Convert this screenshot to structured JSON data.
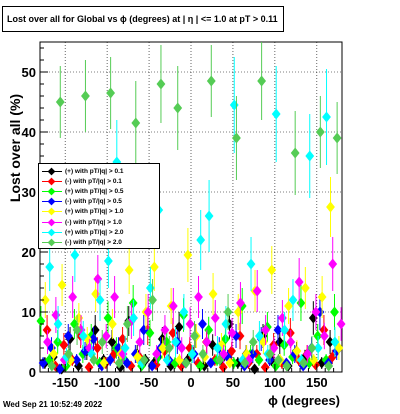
{
  "title": "Lost over all for Global vs ϕ (degrees) at |  η | <= 1.0 at pT > 0.11",
  "timestamp": "Wed Sep 21 10:52:49 2022",
  "chart_data": {
    "type": "scatter",
    "xlabel": "ϕ (degrees)",
    "ylabel": "Lost over all (%)",
    "xlim": [
      -180,
      180
    ],
    "ylim": [
      0,
      55
    ],
    "xticks": [
      -150,
      -100,
      -50,
      0,
      50,
      100,
      150
    ],
    "yticks": [
      0,
      10,
      20,
      30,
      40,
      50
    ],
    "grid": true,
    "legend_position": "left-middle",
    "marker": "diamond",
    "series": [
      {
        "name": "(+) with pT/|q| > 0.1",
        "color": "#000000",
        "x": [
          -175,
          -165,
          -155,
          -145,
          -135,
          -125,
          -115,
          -105,
          -95,
          -85,
          -75,
          -65,
          -55,
          -45,
          -35,
          -25,
          -15,
          -5,
          5,
          15,
          25,
          35,
          45,
          55,
          65,
          75,
          85,
          95,
          105,
          115,
          125,
          135,
          145,
          155,
          165,
          175
        ],
        "y": [
          6.5,
          1.5,
          2.5,
          0.5,
          5.5,
          1,
          3.5,
          7,
          2,
          5,
          0.8,
          8.5,
          3,
          2,
          1.5,
          5.5,
          1,
          7.5,
          2,
          6,
          1,
          4.5,
          2,
          8,
          1.5,
          3,
          0.5,
          6,
          2,
          5,
          1,
          3.5,
          2.5,
          9,
          1.5,
          5
        ],
        "err": [
          2,
          1,
          1.5,
          0.5,
          2,
          1,
          1.5,
          2.5,
          1,
          2,
          0.8,
          2.5,
          1.5,
          1,
          1,
          2,
          0.8,
          2.5,
          1,
          2,
          0.8,
          1.8,
          1,
          2.5,
          1,
          1.5,
          0.5,
          2,
          1,
          2,
          0.8,
          1.5,
          1.2,
          2.8,
          1,
          2
        ]
      },
      {
        "name": "(-) with pT/|q| > 0.1",
        "color": "#ff0000",
        "x": [
          -175,
          -165,
          -155,
          -145,
          -135,
          -125,
          -115,
          -105,
          -95,
          -85,
          -75,
          -65,
          -55,
          -45,
          -35,
          -25,
          -15,
          -5,
          5,
          15,
          25,
          35,
          45,
          55,
          65,
          75,
          85,
          95,
          105,
          115,
          125,
          135,
          145,
          155,
          165,
          175
        ],
        "y": [
          3,
          7,
          1,
          4.5,
          2,
          6,
          0.8,
          4,
          1.5,
          3,
          5.5,
          1,
          2.5,
          7,
          1.2,
          3.5,
          6.5,
          1,
          4,
          1.5,
          5,
          2,
          0.8,
          3.5,
          6,
          1.5,
          3,
          0.8,
          4.5,
          1.5,
          6.5,
          2,
          3,
          1.2,
          7,
          2.5
        ],
        "err": [
          1.5,
          2.5,
          0.8,
          2,
          1,
          2,
          0.6,
          1.8,
          1,
          1.5,
          2,
          0.8,
          1.2,
          2.5,
          0.8,
          1.5,
          2.5,
          0.8,
          1.8,
          1,
          2,
          1,
          0.6,
          1.5,
          2.2,
          1,
          1.5,
          0.6,
          2,
          1,
          2.5,
          1,
          1.5,
          0.8,
          2.5,
          1.2
        ]
      },
      {
        "name": "(+) with pT/|q| > 0.5",
        "color": "#00ff00",
        "x": [
          -175,
          -165,
          -155,
          -145,
          -135,
          -125,
          -115,
          -105,
          -95,
          -85,
          -75,
          -65,
          -55,
          -45,
          -35,
          -25,
          -15,
          -5,
          5,
          15,
          25,
          35,
          45,
          55,
          65,
          75,
          85,
          95,
          105,
          115,
          125,
          135,
          145,
          155,
          165,
          175
        ],
        "y": [
          8.5,
          2,
          5,
          1,
          8,
          3,
          6,
          1.5,
          9,
          4,
          2,
          11.5,
          1,
          6.5,
          2.5,
          5,
          1.5,
          9.5,
          3,
          1,
          7,
          2,
          5.5,
          1.5,
          11,
          3,
          2,
          7.5,
          1,
          4.5,
          2.5,
          11.5,
          1.5,
          6,
          2,
          10
        ],
        "err": [
          2.5,
          1,
          2,
          0.8,
          2.5,
          1.5,
          2,
          1,
          2.8,
          1.8,
          1,
          3,
          0.8,
          2.2,
          1.2,
          2,
          1,
          2.8,
          1.5,
          0.8,
          2.2,
          1,
          2,
          1,
          3,
          1.5,
          1,
          2.5,
          0.8,
          1.8,
          1.2,
          3,
          1,
          2,
          1,
          3
        ]
      },
      {
        "name": "(-) with pT/|q| > 0.5",
        "color": "#0000ff",
        "x": [
          -175,
          -165,
          -155,
          -145,
          -135,
          -125,
          -115,
          -105,
          -95,
          -85,
          -75,
          -65,
          -55,
          -45,
          -35,
          -25,
          -15,
          -5,
          5,
          15,
          25,
          35,
          45,
          55,
          65,
          75,
          85,
          95,
          105,
          115,
          125,
          135,
          145,
          155,
          165,
          175
        ],
        "y": [
          1.5,
          4,
          0.5,
          6,
          2,
          3.5,
          5.5,
          1,
          2,
          4,
          1.5,
          3,
          7,
          1,
          4,
          2,
          5,
          1.5,
          3,
          8,
          1.5,
          4,
          2.5,
          6,
          1,
          3,
          5.5,
          2,
          7,
          1.5,
          3,
          1,
          4,
          10,
          1.5,
          3.5
        ],
        "err": [
          1,
          1.8,
          0.5,
          2,
          1,
          1.5,
          2,
          0.8,
          1,
          1.8,
          0.8,
          1.5,
          2.5,
          0.6,
          1.8,
          1,
          2,
          0.8,
          1.5,
          2.5,
          0.8,
          1.8,
          1.2,
          2,
          0.6,
          1.5,
          2,
          1,
          2.5,
          0.8,
          1.5,
          0.6,
          1.8,
          3,
          0.8,
          1.5
        ]
      },
      {
        "name": "(+) with pT/|q| > 1.0",
        "color": "#ffff00",
        "x": [
          -175,
          -165,
          -155,
          -145,
          -135,
          -125,
          -115,
          -105,
          -95,
          -85,
          -75,
          -65,
          -55,
          -45,
          -35,
          -25,
          -15,
          -5,
          5,
          15,
          25,
          35,
          45,
          55,
          65,
          75,
          85,
          95,
          105,
          115,
          125,
          135,
          145,
          155,
          165,
          175
        ],
        "y": [
          12,
          3,
          14.5,
          2,
          9,
          5.5,
          13,
          1.5,
          8,
          3,
          17,
          2.5,
          10,
          17.5,
          4,
          11,
          2,
          19.5,
          6,
          2.5,
          13,
          4.5,
          1.5,
          10,
          3,
          13.5,
          5,
          17,
          2,
          11,
          3.5,
          14,
          2,
          12.5,
          27.5,
          4
        ],
        "err": [
          3,
          1.5,
          3.5,
          1,
          2.5,
          2,
          3,
          1,
          2.5,
          1.5,
          4,
          1.2,
          3,
          4,
          1.8,
          3,
          1,
          4.5,
          2,
          1.2,
          3.5,
          2,
          0.8,
          3,
          1.5,
          3.5,
          2,
          4,
          1,
          3,
          1.8,
          3.5,
          1,
          3.5,
          5,
          2
        ]
      },
      {
        "name": "(-) with pT/|q| > 1.0",
        "color": "#ff00ff",
        "x": [
          -175,
          -165,
          -155,
          -145,
          -135,
          -125,
          -115,
          -105,
          -95,
          -85,
          -75,
          -65,
          -55,
          -45,
          -35,
          -25,
          -15,
          -5,
          5,
          15,
          25,
          35,
          45,
          55,
          65,
          75,
          85,
          95,
          105,
          115,
          125,
          135,
          145,
          155,
          165,
          175
        ],
        "y": [
          5,
          9.5,
          2,
          12.5,
          7,
          4,
          15.5,
          6,
          12.5,
          3,
          8.5,
          5,
          10,
          3,
          7,
          11,
          4,
          8,
          12.5,
          5,
          9,
          3,
          6.5,
          11.5,
          2,
          13.5,
          7,
          4,
          9,
          5,
          15,
          3,
          10,
          6,
          18,
          8
        ],
        "err": [
          2,
          3,
          1,
          3.5,
          2.5,
          1.5,
          4,
          2,
          3.5,
          1.5,
          3,
          2,
          3,
          1.5,
          2.5,
          3,
          1.8,
          2.8,
          3.5,
          2,
          3,
          1.5,
          2.5,
          3.5,
          1,
          3.5,
          2.5,
          1.8,
          3,
          2,
          4,
          1.5,
          3,
          2.2,
          4.5,
          2.8
        ]
      },
      {
        "name": "(+) with pT/|q| > 2.0",
        "color": "#00ffff",
        "x": [
          -175,
          -165,
          -155,
          -145,
          -135,
          -125,
          -115,
          -105,
          -95,
          -85,
          -75,
          -65,
          -55,
          -45,
          -35,
          -25,
          -15,
          -5,
          5,
          15,
          25,
          35,
          45,
          55,
          65,
          75,
          85,
          95,
          105,
          115,
          125,
          135,
          145,
          155,
          165,
          175
        ],
        "y": [
          17.5,
          8,
          2.5,
          19.5,
          6,
          3,
          12,
          18.5,
          35,
          4,
          9,
          1.5,
          14,
          27,
          2,
          5,
          10,
          3,
          22,
          26,
          4,
          8,
          44.5,
          2,
          18,
          6,
          3,
          43,
          7,
          12,
          2,
          36,
          4,
          42.5,
          5,
          8
        ],
        "err": [
          4,
          3,
          1.5,
          4.5,
          2.5,
          1.5,
          3.5,
          4.5,
          7,
          2,
          3,
          1,
          3.5,
          6,
          1,
          2.5,
          3,
          1.5,
          5,
          6,
          2,
          3,
          8,
          1,
          4.5,
          2.5,
          1.5,
          8,
          3,
          3.5,
          1,
          7,
          2,
          8,
          2.5,
          3
        ]
      },
      {
        "name": "(-) with pT/|q| > 2.0",
        "color": "#55cc55",
        "x": [
          -175,
          -165,
          -155,
          -145,
          -135,
          -125,
          -115,
          -105,
          -95,
          -85,
          -75,
          -65,
          -55,
          -45,
          -35,
          -25,
          -15,
          -5,
          5,
          15,
          25,
          35,
          45,
          55,
          65,
          75,
          85,
          95,
          105,
          115,
          125,
          135,
          145,
          155,
          165,
          175
        ],
        "y": [
          1,
          45,
          3,
          7,
          46,
          2,
          5,
          46.5,
          1.5,
          8,
          41.5,
          2,
          12,
          48,
          4,
          44,
          1.5,
          6,
          3,
          48.5,
          2,
          10,
          39,
          1.5,
          5,
          48.5,
          3,
          2,
          1,
          36.5,
          1.5,
          4,
          40,
          1,
          39,
          1.5
        ],
        "err": [
          0.8,
          6,
          1.5,
          2.5,
          6,
          1,
          2,
          6,
          0.8,
          3,
          7,
          1,
          3.5,
          6.5,
          2,
          7,
          0.8,
          2.5,
          1.5,
          6,
          1,
          3,
          7,
          0.8,
          2,
          6.5,
          1.5,
          1,
          0.6,
          7,
          0.8,
          2,
          6,
          0.6,
          6,
          0.8
        ]
      }
    ]
  }
}
